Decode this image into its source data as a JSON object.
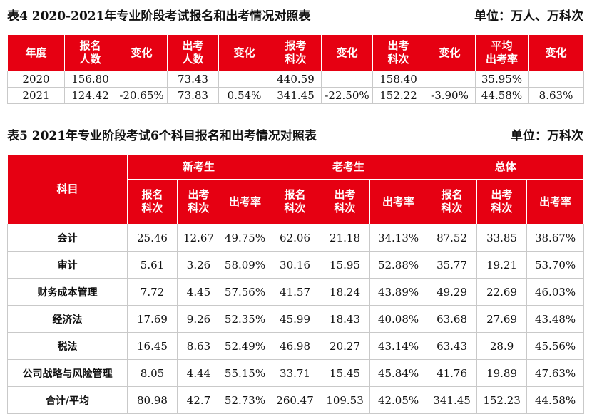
{
  "table4": {
    "title": "表4  2020-2021年专业阶段考试报名和出考情况对照表",
    "unit": "单位：万人、万科次",
    "headers": [
      "年度",
      "报名\n人数",
      "变化",
      "出考\n人数",
      "变化",
      "报考\n科次",
      "变化",
      "出考\n科次",
      "变化",
      "平均\n出考率",
      "变化"
    ],
    "rows": [
      [
        "2020",
        "156.80",
        "",
        "73.43",
        "",
        "440.59",
        "",
        "158.40",
        "",
        "35.95%",
        ""
      ],
      [
        "2021",
        "124.42",
        "-20.65%",
        "73.83",
        "0.54%",
        "341.45",
        "-22.50%",
        "152.22",
        "-3.90%",
        "44.58%",
        "8.63%"
      ]
    ]
  },
  "table5": {
    "title": "表5  2021年专业阶段考试6个科目报名和出考情况对照表",
    "unit": "单位：万科次",
    "subject_header": "科目",
    "groups": [
      "新考生",
      "老考生",
      "总体"
    ],
    "sub_headers": [
      "报名\n科次",
      "出考\n科次",
      "出考率"
    ],
    "rows": [
      [
        "会计",
        "25.46",
        "12.67",
        "49.75%",
        "62.06",
        "21.18",
        "34.13%",
        "87.52",
        "33.85",
        "38.67%"
      ],
      [
        "审计",
        "5.61",
        "3.26",
        "58.09%",
        "30.16",
        "15.95",
        "52.88%",
        "35.77",
        "19.21",
        "53.70%"
      ],
      [
        "财务成本管理",
        "7.72",
        "4.45",
        "57.56%",
        "41.57",
        "18.24",
        "43.89%",
        "49.29",
        "22.69",
        "46.03%"
      ],
      [
        "经济法",
        "17.69",
        "9.26",
        "52.35%",
        "45.99",
        "18.43",
        "40.08%",
        "63.68",
        "27.69",
        "43.48%"
      ],
      [
        "税法",
        "16.45",
        "8.63",
        "52.49%",
        "46.98",
        "20.27",
        "43.14%",
        "63.43",
        "28.9",
        "45.56%"
      ],
      [
        "公司战略与风险管理",
        "8.05",
        "4.44",
        "55.15%",
        "33.71",
        "15.45",
        "45.84%",
        "41.76",
        "19.89",
        "47.63%"
      ],
      [
        "合计/平均",
        "80.98",
        "42.7",
        "52.73%",
        "260.47",
        "109.53",
        "42.05%",
        "341.45",
        "152.23",
        "44.58%"
      ]
    ]
  }
}
